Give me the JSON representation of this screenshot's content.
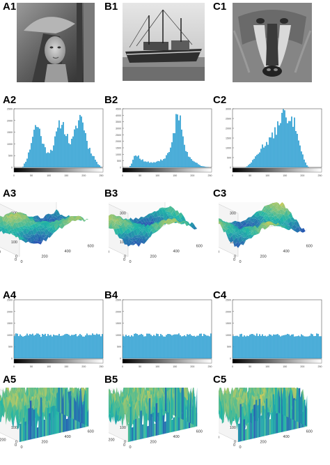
{
  "figure": {
    "panels": {
      "A1": "A1",
      "B1": "B1",
      "C1": "C1",
      "A2": "A2",
      "B2": "B2",
      "C2": "C2",
      "A3": "A3",
      "B3": "B3",
      "C3": "C3",
      "A4": "A4",
      "B4": "B4",
      "C4": "C4",
      "A5": "A5",
      "B5": "B5",
      "C5": "C5"
    },
    "images": {
      "A1": "grayscale portrait photograph (woman with hat)",
      "B1": "grayscale photograph of fishing boats on a beach",
      "C1": "grayscale photograph of a mandrill face"
    },
    "colors": {
      "bar": "#2aa3d8",
      "bar_dark": "#1a7fb0",
      "surface_low": "#2a3fb5",
      "surface_mid": "#21b5a8",
      "surface_high": "#f4d24a",
      "axis": "#555555"
    }
  },
  "chart_data": [
    {
      "panel": "A2",
      "type": "bar",
      "x_ticks": [
        "0",
        "50",
        "100",
        "150",
        "200",
        "250"
      ],
      "y_ticks": [
        "0",
        "500",
        "1000",
        "1500",
        "2000",
        "2500"
      ],
      "xlim": [
        0,
        255
      ],
      "ylim": [
        0,
        3000
      ],
      "values": [
        0,
        0,
        0,
        0,
        0,
        200,
        400,
        700,
        1100,
        1600,
        2000,
        2150,
        2050,
        1750,
        1350,
        1000,
        850,
        800,
        850,
        1000,
        1300,
        1700,
        2000,
        2300,
        2250,
        2000,
        1700,
        1400,
        1250,
        1350,
        1700,
        2100,
        2400,
        2650,
        2450,
        2000,
        1500,
        1100,
        850,
        700,
        500,
        300,
        150,
        50,
        0
      ]
    },
    {
      "panel": "B2",
      "type": "bar",
      "x_ticks": [
        "0",
        "50",
        "100",
        "150",
        "200",
        "250"
      ],
      "y_ticks": [
        "0",
        "500",
        "1000",
        "1500",
        "2000",
        "2500",
        "3000",
        "3500",
        "4000",
        "4500"
      ],
      "xlim": [
        0,
        255
      ],
      "ylim": [
        0,
        4500
      ],
      "values": [
        0,
        0,
        0,
        0,
        200,
        600,
        1000,
        900,
        750,
        600,
        550,
        450,
        400,
        380,
        350,
        380,
        420,
        450,
        500,
        550,
        600,
        700,
        900,
        1100,
        1500,
        2200,
        3200,
        4300,
        4200,
        3400,
        2400,
        1600,
        1100,
        800,
        600,
        500,
        400,
        300,
        200,
        120,
        80,
        40,
        20,
        0,
        0
      ]
    },
    {
      "panel": "C2",
      "type": "bar",
      "x_ticks": [
        "0",
        "50",
        "100",
        "150",
        "200",
        "250"
      ],
      "y_ticks": [
        "0",
        "500",
        "1000",
        "1500",
        "2000",
        "2500",
        "3000"
      ],
      "xlim": [
        0,
        255
      ],
      "ylim": [
        0,
        3000
      ],
      "values": [
        0,
        0,
        0,
        0,
        0,
        0,
        0,
        50,
        150,
        250,
        350,
        500,
        650,
        800,
        950,
        1100,
        1200,
        1300,
        1400,
        1500,
        1600,
        1800,
        2000,
        2300,
        2600,
        2800,
        2600,
        2300,
        2200,
        2300,
        2400,
        2200,
        1900,
        1500,
        1000,
        600,
        300,
        100,
        0,
        0,
        0,
        0,
        0,
        0,
        0
      ]
    },
    {
      "panel": "A3",
      "type": "surface",
      "z_ticks": [
        "0",
        "100",
        "200",
        "300"
      ],
      "x_ticks": [
        "0",
        "200",
        "400",
        "600"
      ],
      "y_ticks": [
        "400",
        "200",
        "0"
      ]
    },
    {
      "panel": "B3",
      "type": "surface",
      "z_ticks": [
        "0",
        "100",
        "200",
        "300"
      ],
      "x_ticks": [
        "0",
        "200",
        "400",
        "600"
      ],
      "y_ticks": [
        "400",
        "200",
        "0"
      ]
    },
    {
      "panel": "C3",
      "type": "surface",
      "z_ticks": [
        "0",
        "100",
        "200",
        "300"
      ],
      "x_ticks": [
        "0",
        "200",
        "400",
        "600"
      ],
      "y_ticks": [
        "400",
        "200",
        "0"
      ]
    },
    {
      "panel": "A4",
      "type": "bar",
      "x_ticks": [
        "0",
        "50",
        "100",
        "150",
        "200",
        "250"
      ],
      "y_ticks": [
        "0",
        "500",
        "1000",
        "1500",
        "2000",
        "2500"
      ],
      "xlim": [
        0,
        255
      ],
      "ylim": [
        0,
        2500
      ],
      "level": 1000
    },
    {
      "panel": "B4",
      "type": "bar",
      "x_ticks": [
        "0",
        "50",
        "100",
        "150",
        "200",
        "250"
      ],
      "y_ticks": [
        "0",
        "500",
        "1000",
        "1500",
        "2000",
        "2500"
      ],
      "xlim": [
        0,
        255
      ],
      "ylim": [
        0,
        2500
      ],
      "level": 1000
    },
    {
      "panel": "C4",
      "type": "bar",
      "x_ticks": [
        "0",
        "50",
        "100",
        "150",
        "200",
        "250"
      ],
      "y_ticks": [
        "0",
        "500",
        "1000",
        "1500",
        "2000",
        "2500"
      ],
      "xlim": [
        0,
        255
      ],
      "ylim": [
        0,
        2500
      ],
      "level": 1000
    },
    {
      "panel": "A5",
      "type": "surface",
      "z_ticks": [
        "0",
        "100",
        "200",
        "300"
      ],
      "x_ticks": [
        "0",
        "200",
        "400",
        "600"
      ],
      "y_ticks": [
        "600",
        "400",
        "200",
        "0"
      ]
    },
    {
      "panel": "B5",
      "type": "surface",
      "z_ticks": [
        "0",
        "100",
        "200",
        "300"
      ],
      "x_ticks": [
        "0",
        "200",
        "400",
        "600"
      ],
      "y_ticks": [
        "600",
        "400",
        "200",
        "0"
      ]
    },
    {
      "panel": "C5",
      "type": "surface",
      "z_ticks": [
        "0",
        "100",
        "200",
        "300"
      ],
      "x_ticks": [
        "0",
        "200",
        "400",
        "600"
      ],
      "y_ticks": [
        "400",
        "200",
        "0"
      ]
    }
  ]
}
